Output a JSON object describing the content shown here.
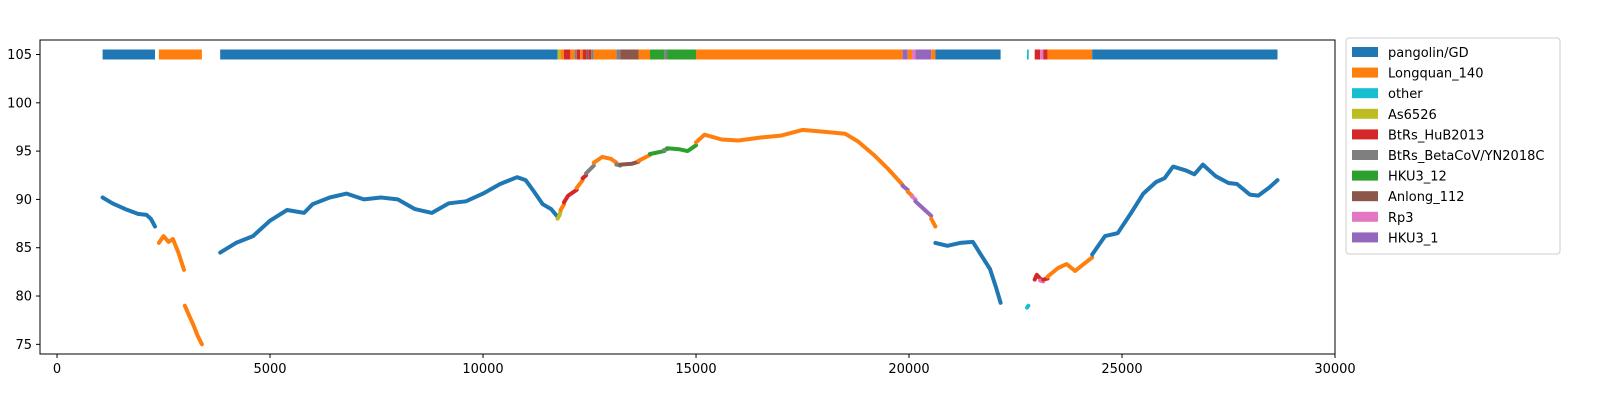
{
  "chart_data": {
    "type": "scatter",
    "title": "",
    "xlabel": "",
    "ylabel": "",
    "xlim": [
      -400,
      30000
    ],
    "ylim": [
      74,
      106.5
    ],
    "xticks": [
      0,
      5000,
      10000,
      15000,
      20000,
      25000,
      30000
    ],
    "yticks": [
      75,
      80,
      85,
      90,
      95,
      100,
      105
    ],
    "legend_position": "outside-right-top",
    "grid": false,
    "colors": {
      "pangolin/GD": "#1f77b4",
      "Longquan_140": "#ff7f0e",
      "other": "#17becf",
      "As6526": "#bcbd22",
      "BtRs_HuB2013": "#d62728",
      "BtRs_BetaCoV/YN2018C": "#7f7f7f",
      "HKU3_12": "#2ca02c",
      "Anlong_112": "#8c564b",
      "Rp3": "#e377c2",
      "HKU3_1": "#9467bd"
    },
    "legend": [
      "pangolin/GD",
      "Longquan_140",
      "other",
      "As6526",
      "BtRs_HuB2013",
      "BtRs_BetaCoV/YN2018C",
      "HKU3_12",
      "Anlong_112",
      "Rp3",
      "HKU3_1"
    ],
    "best_match_band": {
      "y": 105,
      "segments": [
        {
          "x0": 1070,
          "x1": 2300,
          "label": "pangolin/GD"
        },
        {
          "x0": 2390,
          "x1": 3400,
          "label": "Longquan_140"
        },
        {
          "x0": 3830,
          "x1": 11750,
          "label": "pangolin/GD"
        },
        {
          "x0": 11750,
          "x1": 11820,
          "label": "As6526"
        },
        {
          "x0": 11820,
          "x1": 11900,
          "label": "Longquan_140"
        },
        {
          "x0": 11900,
          "x1": 12050,
          "label": "BtRs_HuB2013"
        },
        {
          "x0": 12050,
          "x1": 12150,
          "label": "Longquan_140"
        },
        {
          "x0": 12150,
          "x1": 12200,
          "label": "BtRs_BetaCoV/YN2018C"
        },
        {
          "x0": 12200,
          "x1": 12280,
          "label": "BtRs_HuB2013"
        },
        {
          "x0": 12280,
          "x1": 12340,
          "label": "Longquan_140"
        },
        {
          "x0": 12340,
          "x1": 12420,
          "label": "BtRs_HuB2013"
        },
        {
          "x0": 12420,
          "x1": 12480,
          "label": "Anlong_112"
        },
        {
          "x0": 12480,
          "x1": 12540,
          "label": "BtRs_HuB2013"
        },
        {
          "x0": 12540,
          "x1": 12600,
          "label": "BtRs_BetaCoV/YN2018C"
        },
        {
          "x0": 12600,
          "x1": 13130,
          "label": "Longquan_140"
        },
        {
          "x0": 13130,
          "x1": 13220,
          "label": "BtRs_BetaCoV/YN2018C"
        },
        {
          "x0": 13220,
          "x1": 13650,
          "label": "Anlong_112"
        },
        {
          "x0": 13650,
          "x1": 13920,
          "label": "Longquan_140"
        },
        {
          "x0": 13920,
          "x1": 14250,
          "label": "HKU3_12"
        },
        {
          "x0": 14250,
          "x1": 14320,
          "label": "BtRs_BetaCoV/YN2018C"
        },
        {
          "x0": 14320,
          "x1": 15000,
          "label": "HKU3_12"
        },
        {
          "x0": 15000,
          "x1": 19850,
          "label": "Longquan_140"
        },
        {
          "x0": 19850,
          "x1": 19970,
          "label": "HKU3_1"
        },
        {
          "x0": 19970,
          "x1": 20070,
          "label": "Longquan_140"
        },
        {
          "x0": 20070,
          "x1": 20150,
          "label": "Rp3"
        },
        {
          "x0": 20150,
          "x1": 20520,
          "label": "HKU3_1"
        },
        {
          "x0": 20520,
          "x1": 20620,
          "label": "Longquan_140"
        },
        {
          "x0": 20620,
          "x1": 22150,
          "label": "pangolin/GD"
        },
        {
          "x0": 22770,
          "x1": 22810,
          "label": "other"
        },
        {
          "x0": 22950,
          "x1": 23080,
          "label": "BtRs_HuB2013"
        },
        {
          "x0": 23080,
          "x1": 23150,
          "label": "Rp3"
        },
        {
          "x0": 23150,
          "x1": 23250,
          "label": "BtRs_HuB2013"
        },
        {
          "x0": 23250,
          "x1": 24300,
          "label": "Longquan_140"
        },
        {
          "x0": 24300,
          "x1": 28650,
          "label": "pangolin/GD"
        }
      ]
    },
    "similarity_series": [
      {
        "label": "pangolin/GD",
        "points": [
          [
            1070,
            90.2
          ],
          [
            1300,
            89.6
          ],
          [
            1600,
            89.0
          ],
          [
            1900,
            88.5
          ],
          [
            2100,
            88.4
          ],
          [
            2200,
            88.0
          ],
          [
            2300,
            87.2
          ]
        ]
      },
      {
        "label": "Longquan_140",
        "points": [
          [
            2390,
            85.5
          ],
          [
            2500,
            86.2
          ],
          [
            2620,
            85.6
          ],
          [
            2720,
            85.9
          ],
          [
            2850,
            84.5
          ],
          [
            2980,
            82.7
          ]
        ]
      },
      {
        "label": "Longquan_140",
        "points": [
          [
            3000,
            79.0
          ],
          [
            3100,
            78.0
          ],
          [
            3200,
            77.0
          ],
          [
            3300,
            75.9
          ],
          [
            3400,
            75.0
          ]
        ]
      },
      {
        "label": "pangolin/GD",
        "points": [
          [
            3830,
            84.5
          ],
          [
            4200,
            85.5
          ],
          [
            4600,
            86.2
          ],
          [
            5000,
            87.8
          ],
          [
            5400,
            88.9
          ],
          [
            5800,
            88.6
          ],
          [
            6000,
            89.5
          ],
          [
            6400,
            90.2
          ],
          [
            6800,
            90.6
          ],
          [
            7200,
            90.0
          ],
          [
            7600,
            90.2
          ],
          [
            8000,
            90.0
          ],
          [
            8400,
            89.0
          ],
          [
            8800,
            88.6
          ],
          [
            9200,
            89.6
          ],
          [
            9600,
            89.8
          ],
          [
            10000,
            90.6
          ],
          [
            10400,
            91.6
          ],
          [
            10800,
            92.3
          ],
          [
            11000,
            92.0
          ],
          [
            11200,
            90.8
          ],
          [
            11400,
            89.5
          ],
          [
            11600,
            89.0
          ],
          [
            11750,
            88.2
          ]
        ]
      },
      {
        "label": "As6526",
        "points": [
          [
            11750,
            88.0
          ],
          [
            11800,
            88.4
          ],
          [
            11820,
            88.8
          ]
        ]
      },
      {
        "label": "Longquan_140",
        "points": [
          [
            11820,
            88.9
          ],
          [
            11900,
            89.5
          ]
        ]
      },
      {
        "label": "BtRs_HuB2013",
        "points": [
          [
            11900,
            89.7
          ],
          [
            12000,
            90.4
          ],
          [
            12200,
            91.0
          ]
        ]
      },
      {
        "label": "Longquan_140",
        "points": [
          [
            12200,
            91.2
          ],
          [
            12340,
            92.0
          ]
        ]
      },
      {
        "label": "BtRs_HuB2013",
        "points": [
          [
            12340,
            92.2
          ],
          [
            12420,
            92.5
          ]
        ]
      },
      {
        "label": "BtRs_BetaCoV/YN2018C",
        "points": [
          [
            12420,
            92.7
          ],
          [
            12600,
            93.5
          ]
        ]
      },
      {
        "label": "Longquan_140",
        "points": [
          [
            12600,
            93.8
          ],
          [
            12800,
            94.4
          ],
          [
            13000,
            94.2
          ],
          [
            13130,
            93.8
          ]
        ]
      },
      {
        "label": "BtRs_BetaCoV/YN2018C",
        "points": [
          [
            13130,
            93.6
          ],
          [
            13220,
            93.5
          ]
        ]
      },
      {
        "label": "Anlong_112",
        "points": [
          [
            13220,
            93.6
          ],
          [
            13500,
            93.7
          ],
          [
            13650,
            93.9
          ]
        ]
      },
      {
        "label": "Longquan_140",
        "points": [
          [
            13650,
            94.0
          ],
          [
            13920,
            94.6
          ]
        ]
      },
      {
        "label": "HKU3_12",
        "points": [
          [
            13920,
            94.7
          ],
          [
            14250,
            95.0
          ]
        ]
      },
      {
        "label": "BtRs_BetaCoV/YN2018C",
        "points": [
          [
            14250,
            95.1
          ],
          [
            14320,
            95.2
          ]
        ]
      },
      {
        "label": "HKU3_12",
        "points": [
          [
            14320,
            95.3
          ],
          [
            14600,
            95.2
          ],
          [
            14800,
            95.0
          ],
          [
            15000,
            95.6
          ]
        ]
      },
      {
        "label": "Longquan_140",
        "points": [
          [
            15000,
            95.9
          ],
          [
            15200,
            96.7
          ],
          [
            15600,
            96.2
          ],
          [
            16000,
            96.1
          ],
          [
            16500,
            96.4
          ],
          [
            17000,
            96.6
          ],
          [
            17500,
            97.2
          ],
          [
            18000,
            97.0
          ],
          [
            18500,
            96.8
          ],
          [
            18800,
            96.0
          ],
          [
            19200,
            94.5
          ],
          [
            19500,
            93.2
          ],
          [
            19850,
            91.5
          ]
        ]
      },
      {
        "label": "HKU3_1",
        "points": [
          [
            19850,
            91.4
          ],
          [
            19970,
            91.0
          ]
        ]
      },
      {
        "label": "Longquan_140",
        "points": [
          [
            19970,
            90.8
          ],
          [
            20070,
            90.4
          ]
        ]
      },
      {
        "label": "Rp3",
        "points": [
          [
            20070,
            90.3
          ],
          [
            20150,
            90.0
          ]
        ]
      },
      {
        "label": "HKU3_1",
        "points": [
          [
            20150,
            89.8
          ],
          [
            20350,
            89.0
          ],
          [
            20520,
            88.3
          ]
        ]
      },
      {
        "label": "Longquan_140",
        "points": [
          [
            20520,
            88.0
          ],
          [
            20620,
            87.2
          ]
        ]
      },
      {
        "label": "pangolin/GD",
        "points": [
          [
            20620,
            85.5
          ],
          [
            20900,
            85.2
          ],
          [
            21200,
            85.5
          ],
          [
            21500,
            85.6
          ],
          [
            21700,
            84.2
          ],
          [
            21900,
            82.8
          ],
          [
            22050,
            80.8
          ],
          [
            22150,
            79.3
          ]
        ]
      },
      {
        "label": "other",
        "points": [
          [
            22770,
            78.8
          ],
          [
            22800,
            79.0
          ]
        ]
      },
      {
        "label": "BtRs_HuB2013",
        "points": [
          [
            22950,
            81.7
          ],
          [
            23000,
            82.2
          ],
          [
            23080,
            81.8
          ]
        ]
      },
      {
        "label": "Rp3",
        "points": [
          [
            23080,
            81.6
          ],
          [
            23150,
            81.5
          ]
        ]
      },
      {
        "label": "BtRs_HuB2013",
        "points": [
          [
            23150,
            81.7
          ],
          [
            23250,
            81.8
          ]
        ]
      },
      {
        "label": "Longquan_140",
        "points": [
          [
            23250,
            82.0
          ],
          [
            23500,
            82.9
          ],
          [
            23700,
            83.3
          ],
          [
            23900,
            82.6
          ],
          [
            24100,
            83.3
          ],
          [
            24300,
            84.0
          ]
        ]
      },
      {
        "label": "pangolin/GD",
        "points": [
          [
            24300,
            84.3
          ],
          [
            24600,
            86.2
          ],
          [
            24900,
            86.5
          ],
          [
            25200,
            88.5
          ],
          [
            25500,
            90.6
          ],
          [
            25800,
            91.8
          ],
          [
            26000,
            92.2
          ],
          [
            26200,
            93.4
          ],
          [
            26500,
            93.0
          ],
          [
            26700,
            92.6
          ],
          [
            26900,
            93.6
          ],
          [
            27200,
            92.4
          ],
          [
            27500,
            91.7
          ],
          [
            27700,
            91.6
          ],
          [
            28000,
            90.5
          ],
          [
            28200,
            90.4
          ],
          [
            28450,
            91.2
          ],
          [
            28650,
            92.0
          ]
        ]
      }
    ]
  }
}
